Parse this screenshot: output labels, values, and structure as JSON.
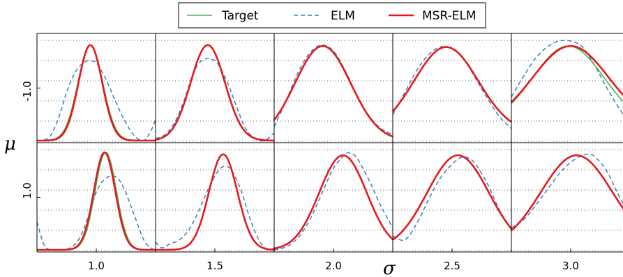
{
  "chart_data": {
    "type": "line",
    "legend": {
      "placement": "top-center",
      "entries": [
        {
          "label": "Target",
          "color": "#4daf4a",
          "style": "solid-thin"
        },
        {
          "label": "ELM",
          "color": "#377eb8",
          "style": "dashed"
        },
        {
          "label": "MSR-ELM",
          "color": "#e41a1c",
          "style": "solid-thick"
        }
      ]
    },
    "xlabel": "σ",
    "ylabel": "μ",
    "column_labels": [
      "1.0",
      "1.5",
      "2.0",
      "2.5",
      "3.0"
    ],
    "row_labels": [
      "-1.0",
      "1.0"
    ],
    "grid": "horizontal-dotted",
    "panel_x_range": [
      0,
      1
    ],
    "panel_y_range": [
      0,
      1
    ],
    "panels": [
      {
        "row": "-1.0",
        "col": "1.0",
        "target": {
          "mu": 0.45,
          "sd": 0.105,
          "amp": 0.96,
          "base": 0.0
        },
        "msr": {
          "mu": 0.45,
          "sd": 0.1,
          "amp": 0.96,
          "base": 0.0
        },
        "elm": {
          "x": [
            0,
            0.1,
            0.18,
            0.26,
            0.34,
            0.42,
            0.45,
            0.5,
            0.58,
            0.66,
            0.74,
            0.82,
            0.9,
            0.97,
            1.0
          ],
          "y": [
            0.0,
            0.03,
            0.22,
            0.52,
            0.72,
            0.8,
            0.8,
            0.78,
            0.62,
            0.4,
            0.2,
            0.05,
            0.0,
            0.12,
            0.22
          ]
        }
      },
      {
        "row": "-1.0",
        "col": "1.5",
        "target": {
          "mu": 0.44,
          "sd": 0.145,
          "amp": 0.96,
          "base": 0.0
        },
        "msr": {
          "mu": 0.44,
          "sd": 0.145,
          "amp": 0.96,
          "base": 0.0
        },
        "elm": {
          "x": [
            0,
            0.08,
            0.16,
            0.24,
            0.3,
            0.36,
            0.42,
            0.46,
            0.52,
            0.6,
            0.68,
            0.76,
            0.84,
            0.92,
            1.0
          ],
          "y": [
            0.02,
            0.06,
            0.18,
            0.4,
            0.62,
            0.77,
            0.82,
            0.82,
            0.78,
            0.6,
            0.35,
            0.12,
            0.02,
            0.0,
            0.08
          ]
        }
      },
      {
        "row": "-1.0",
        "col": "2.0",
        "target": {
          "mu": 0.41,
          "sd": 0.235,
          "amp": 0.95,
          "base": 0.0
        },
        "msr": {
          "mu": 0.41,
          "sd": 0.235,
          "amp": 0.95,
          "base": 0.0
        },
        "elm": {
          "x": [
            0,
            0.1,
            0.2,
            0.3,
            0.4,
            0.5,
            0.6,
            0.7,
            0.8,
            0.9,
            1.0
          ],
          "y": [
            0.14,
            0.4,
            0.68,
            0.88,
            0.96,
            0.9,
            0.7,
            0.45,
            0.25,
            0.12,
            0.06
          ]
        }
      },
      {
        "row": "-1.0",
        "col": "2.5",
        "target": {
          "mu": 0.45,
          "sd": 0.27,
          "amp": 0.86,
          "base": 0.08
        },
        "msr": {
          "mu": 0.45,
          "sd": 0.27,
          "amp": 0.86,
          "base": 0.08
        },
        "elm": {
          "x": [
            0,
            0.1,
            0.2,
            0.3,
            0.4,
            0.5,
            0.6,
            0.7,
            0.8,
            0.9,
            1.0
          ],
          "y": [
            0.26,
            0.48,
            0.7,
            0.86,
            0.94,
            0.92,
            0.82,
            0.62,
            0.42,
            0.24,
            0.12
          ]
        }
      },
      {
        "row": "-1.0",
        "col": "3.0",
        "target": {
          "mu": 0.48,
          "sd": 0.3,
          "amp": 0.8,
          "base": 0.15
        },
        "msr": {
          "mu": 0.5,
          "sd": 0.32,
          "amp": 0.8,
          "base": 0.15
        },
        "elm": {
          "x": [
            0,
            0.1,
            0.2,
            0.3,
            0.4,
            0.5,
            0.6,
            0.7,
            0.8,
            0.9,
            1.0
          ],
          "y": [
            0.44,
            0.64,
            0.82,
            0.94,
            1.0,
            1.0,
            0.94,
            0.76,
            0.54,
            0.34,
            0.16
          ]
        }
      },
      {
        "row": "1.0",
        "col": "1.0",
        "target": {
          "mu": 0.58,
          "sd": 0.09,
          "amp": 0.98,
          "base": 0.0
        },
        "msr": {
          "mu": 0.57,
          "sd": 0.09,
          "amp": 0.98,
          "base": 0.0
        },
        "elm": {
          "x": [
            0,
            0.06,
            0.12,
            0.2,
            0.28,
            0.36,
            0.44,
            0.5,
            0.56,
            0.62,
            0.68,
            0.74,
            0.82,
            0.9,
            0.96,
            1.0
          ],
          "y": [
            0.28,
            0.05,
            0.0,
            0.0,
            0.02,
            0.12,
            0.36,
            0.58,
            0.7,
            0.74,
            0.72,
            0.6,
            0.35,
            0.1,
            0.02,
            0.0
          ]
        }
      },
      {
        "row": "1.0",
        "col": "1.5",
        "target": {
          "mu": 0.57,
          "sd": 0.12,
          "amp": 0.96,
          "base": 0.0
        },
        "msr": {
          "mu": 0.57,
          "sd": 0.12,
          "amp": 0.96,
          "base": 0.0
        },
        "elm": {
          "x": [
            0,
            0.05,
            0.12,
            0.2,
            0.28,
            0.36,
            0.44,
            0.52,
            0.58,
            0.64,
            0.72,
            0.8,
            0.88,
            0.95,
            1.0
          ],
          "y": [
            0.08,
            0.02,
            0.06,
            0.1,
            0.2,
            0.38,
            0.6,
            0.78,
            0.84,
            0.8,
            0.6,
            0.3,
            0.08,
            0.0,
            0.02
          ]
        }
      },
      {
        "row": "1.0",
        "col": "2.0",
        "target": {
          "mu": 0.58,
          "sd": 0.2,
          "amp": 0.95,
          "base": 0.0
        },
        "msr": {
          "mu": 0.58,
          "sd": 0.2,
          "amp": 0.95,
          "base": 0.0
        },
        "elm": {
          "x": [
            0,
            0.1,
            0.2,
            0.3,
            0.4,
            0.5,
            0.6,
            0.64,
            0.7,
            0.8,
            0.9,
            1.0
          ],
          "y": [
            0.0,
            0.03,
            0.12,
            0.3,
            0.56,
            0.82,
            0.96,
            0.97,
            0.92,
            0.7,
            0.44,
            0.22
          ]
        }
      },
      {
        "row": "1.0",
        "col": "2.5",
        "target": {
          "mu": 0.55,
          "sd": 0.26,
          "amp": 0.95,
          "base": 0.0
        },
        "msr": {
          "mu": 0.55,
          "sd": 0.26,
          "amp": 0.95,
          "base": 0.0
        },
        "elm": {
          "x": [
            0,
            0.1,
            0.2,
            0.3,
            0.4,
            0.5,
            0.58,
            0.64,
            0.7,
            0.8,
            0.9,
            1.0
          ],
          "y": [
            0.14,
            0.1,
            0.26,
            0.5,
            0.72,
            0.86,
            0.93,
            0.92,
            0.86,
            0.66,
            0.4,
            0.2
          ]
        }
      },
      {
        "row": "1.0",
        "col": "3.0",
        "target": {
          "mu": 0.55,
          "sd": 0.3,
          "amp": 0.93,
          "base": 0.02
        },
        "msr": {
          "mu": 0.55,
          "sd": 0.3,
          "amp": 0.93,
          "base": 0.02
        },
        "elm": {
          "x": [
            0,
            0.1,
            0.2,
            0.3,
            0.4,
            0.5,
            0.6,
            0.65,
            0.7,
            0.8,
            0.9,
            1.0
          ],
          "y": [
            0.22,
            0.3,
            0.44,
            0.6,
            0.76,
            0.88,
            0.95,
            0.96,
            0.94,
            0.8,
            0.56,
            0.34
          ]
        }
      }
    ]
  }
}
